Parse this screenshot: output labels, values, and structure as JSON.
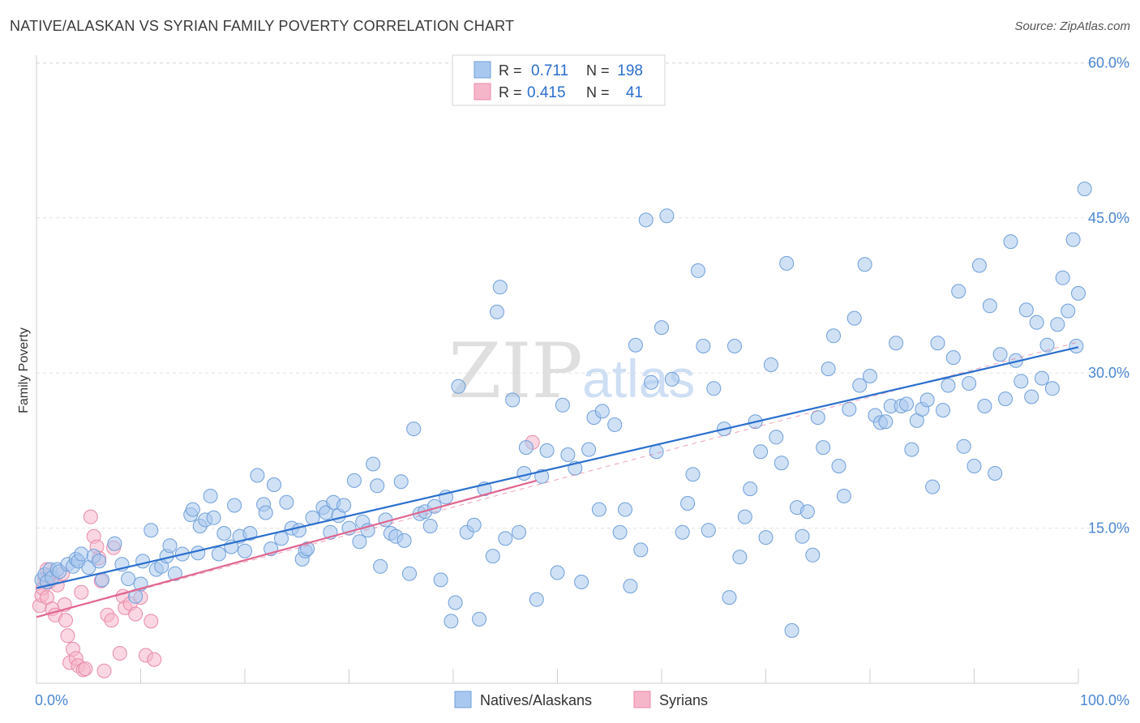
{
  "title": "NATIVE/ALASKAN VS SYRIAN FAMILY POVERTY CORRELATION CHART",
  "source": "Source: ZipAtlas.com",
  "watermark": {
    "zip": "ZIP",
    "atlas": "atlas"
  },
  "legend_top": [
    {
      "label_r": "R =",
      "r": "0.711",
      "label_n": "N =",
      "n": "198",
      "color": "#a9c8ef"
    },
    {
      "label_r": "R =",
      "r": "0.415",
      "label_n": "N =",
      "n": "41",
      "color": "#f6b6ca"
    }
  ],
  "legend_bottom": [
    {
      "label": "Natives/Alaskans",
      "color": "#a9c8ef"
    },
    {
      "label": "Syrians",
      "color": "#f6b6ca"
    }
  ],
  "colors": {
    "blue_fill": "#a9c8ef",
    "blue_stroke": "#6f9fd9",
    "blue_line": "#2a6fce",
    "pink_fill": "#f6b6ca",
    "pink_stroke": "#e98aa9",
    "pink_line": "#e0668f",
    "axis_text": "#4a86d0"
  },
  "chart_data": {
    "type": "scatter",
    "title": "NATIVE/ALASKAN VS SYRIAN FAMILY POVERTY CORRELATION CHART",
    "xlabel": "",
    "ylabel": "Family Poverty",
    "xlim": [
      0,
      100
    ],
    "ylim": [
      0,
      63
    ],
    "x_tick_labels": [
      {
        "value": 0,
        "label": "0.0%"
      },
      {
        "value": 100,
        "label": "100.0%"
      }
    ],
    "y_tick_labels": [
      {
        "value": 15,
        "label": "15.0%"
      },
      {
        "value": 30,
        "label": "30.0%"
      },
      {
        "value": 45,
        "label": "45.0%"
      },
      {
        "value": 60,
        "label": "60.0%"
      }
    ],
    "series": [
      {
        "name": "Natives/Alaskans",
        "r": 0.711,
        "n": 198,
        "trend": {
          "x0": 0,
          "y0": 9.2,
          "x1": 100,
          "y1": 32.5
        },
        "trend_ext": {
          "x0": 0,
          "y0": 6.4,
          "x1": 100,
          "y1": 33
        },
        "points": [
          [
            0.5,
            10
          ],
          [
            0.8,
            10.5
          ],
          [
            1,
            9.8
          ],
          [
            1.3,
            11
          ],
          [
            1.5,
            10.2
          ],
          [
            2,
            11
          ],
          [
            2.2,
            10.8
          ],
          [
            3,
            11.5
          ],
          [
            3.5,
            11.3
          ],
          [
            3.8,
            12
          ],
          [
            4,
            11.8
          ],
          [
            4.3,
            12.5
          ],
          [
            5,
            11.2
          ],
          [
            5.5,
            12.3
          ],
          [
            6,
            11.8
          ],
          [
            6.3,
            10
          ],
          [
            7.5,
            13.5
          ],
          [
            8.2,
            11.5
          ],
          [
            8.8,
            10.1
          ],
          [
            9.5,
            8.4
          ],
          [
            10,
            9.6
          ],
          [
            10.2,
            11.8
          ],
          [
            11,
            14.8
          ],
          [
            11.5,
            11
          ],
          [
            12,
            11.3
          ],
          [
            12.5,
            12.3
          ],
          [
            12.8,
            13.3
          ],
          [
            13.3,
            10.6
          ],
          [
            14,
            12.5
          ],
          [
            14.8,
            16.3
          ],
          [
            15,
            16.8
          ],
          [
            15.5,
            12.6
          ],
          [
            15.7,
            15.2
          ],
          [
            16.2,
            15.8
          ],
          [
            16.7,
            18.1
          ],
          [
            17,
            16
          ],
          [
            17.5,
            12.5
          ],
          [
            18,
            14.5
          ],
          [
            18.7,
            13.2
          ],
          [
            19,
            17.2
          ],
          [
            19.5,
            14.2
          ],
          [
            20,
            12.8
          ],
          [
            20.5,
            14.5
          ],
          [
            21.2,
            20.1
          ],
          [
            21.8,
            17.3
          ],
          [
            22,
            16.5
          ],
          [
            22.5,
            13
          ],
          [
            22.8,
            19.2
          ],
          [
            23.5,
            14
          ],
          [
            24,
            17.5
          ],
          [
            24.5,
            15
          ],
          [
            25.2,
            14.8
          ],
          [
            25.5,
            12
          ],
          [
            25.8,
            12.8
          ],
          [
            26,
            13
          ],
          [
            26.5,
            16
          ],
          [
            27.5,
            17
          ],
          [
            27.8,
            16.5
          ],
          [
            28.2,
            14.6
          ],
          [
            28.5,
            17.5
          ],
          [
            29,
            16.2
          ],
          [
            29.5,
            17.2
          ],
          [
            30,
            15
          ],
          [
            30.5,
            19.6
          ],
          [
            31,
            13.7
          ],
          [
            31.3,
            15.6
          ],
          [
            31.8,
            14.8
          ],
          [
            32.3,
            21.2
          ],
          [
            32.7,
            19.1
          ],
          [
            33,
            11.3
          ],
          [
            33.5,
            15.8
          ],
          [
            34,
            14.5
          ],
          [
            34.5,
            14.2
          ],
          [
            35,
            19.5
          ],
          [
            35.3,
            13.8
          ],
          [
            35.8,
            10.6
          ],
          [
            36.2,
            24.6
          ],
          [
            36.8,
            16.4
          ],
          [
            37.3,
            16.6
          ],
          [
            37.8,
            15.2
          ],
          [
            38.2,
            17.1
          ],
          [
            38.8,
            10
          ],
          [
            39.3,
            18
          ],
          [
            39.8,
            6
          ],
          [
            40.2,
            7.8
          ],
          [
            40.5,
            28.7
          ],
          [
            41.3,
            14.6
          ],
          [
            42,
            15.3
          ],
          [
            42.5,
            6.2
          ],
          [
            43,
            18.8
          ],
          [
            43.8,
            12.3
          ],
          [
            44.2,
            35.9
          ],
          [
            44.5,
            38.3
          ],
          [
            45,
            14
          ],
          [
            45.7,
            27.4
          ],
          [
            46.3,
            14.6
          ],
          [
            46.8,
            20.3
          ],
          [
            47,
            22.8
          ],
          [
            48,
            8.1
          ],
          [
            48.5,
            20
          ],
          [
            49,
            22.5
          ],
          [
            50,
            10.7
          ],
          [
            50.5,
            26.9
          ],
          [
            51,
            22.1
          ],
          [
            51.7,
            20.8
          ],
          [
            52.3,
            9.8
          ],
          [
            53,
            22.6
          ],
          [
            53.5,
            25.7
          ],
          [
            54,
            16.8
          ],
          [
            54.3,
            26.3
          ],
          [
            55.5,
            25
          ],
          [
            56,
            14.6
          ],
          [
            56.5,
            16.8
          ],
          [
            57,
            9.4
          ],
          [
            57.5,
            32.7
          ],
          [
            58,
            12.9
          ],
          [
            58.5,
            44.8
          ],
          [
            59,
            29.1
          ],
          [
            59.5,
            22.4
          ],
          [
            60,
            34.4
          ],
          [
            60.5,
            45.2
          ],
          [
            61,
            29.4
          ],
          [
            62,
            14.6
          ],
          [
            62.5,
            17.4
          ],
          [
            63,
            20.2
          ],
          [
            63.5,
            39.9
          ],
          [
            64,
            32.6
          ],
          [
            64.5,
            14.8
          ],
          [
            65,
            28.5
          ],
          [
            66,
            24.6
          ],
          [
            66.5,
            8.3
          ],
          [
            67,
            32.6
          ],
          [
            67.5,
            12.2
          ],
          [
            68,
            16.1
          ],
          [
            68.5,
            18.8
          ],
          [
            69,
            25.3
          ],
          [
            69.5,
            22.4
          ],
          [
            70,
            14.1
          ],
          [
            70.5,
            30.8
          ],
          [
            71,
            23.8
          ],
          [
            71.5,
            21.3
          ],
          [
            72,
            40.6
          ],
          [
            72.5,
            5.1
          ],
          [
            73,
            17
          ],
          [
            73.5,
            14.2
          ],
          [
            74,
            16.6
          ],
          [
            74.5,
            12.4
          ],
          [
            75,
            25.7
          ],
          [
            75.5,
            22.8
          ],
          [
            76,
            30.4
          ],
          [
            76.5,
            33.6
          ],
          [
            77,
            21
          ],
          [
            77.5,
            18.1
          ],
          [
            78,
            26.5
          ],
          [
            78.5,
            35.3
          ],
          [
            79,
            28.8
          ],
          [
            79.5,
            40.5
          ],
          [
            80,
            29.7
          ],
          [
            80.5,
            25.9
          ],
          [
            81,
            25.2
          ],
          [
            81.5,
            25.3
          ],
          [
            82,
            26.8
          ],
          [
            82.5,
            32.9
          ],
          [
            83,
            26.8
          ],
          [
            83.5,
            27
          ],
          [
            84,
            22.6
          ],
          [
            84.5,
            25.4
          ],
          [
            85,
            26.5
          ],
          [
            85.5,
            27.4
          ],
          [
            86,
            19
          ],
          [
            86.5,
            32.9
          ],
          [
            87,
            26.4
          ],
          [
            87.5,
            28.8
          ],
          [
            88,
            31.5
          ],
          [
            88.5,
            37.9
          ],
          [
            89,
            22.9
          ],
          [
            89.5,
            29
          ],
          [
            90,
            21
          ],
          [
            90.5,
            40.4
          ],
          [
            91,
            26.8
          ],
          [
            91.5,
            36.5
          ],
          [
            92,
            20.3
          ],
          [
            92.5,
            31.8
          ],
          [
            93,
            27.5
          ],
          [
            93.5,
            42.7
          ],
          [
            94,
            31.2
          ],
          [
            94.5,
            29.2
          ],
          [
            95,
            36.1
          ],
          [
            95.5,
            27.7
          ],
          [
            96,
            34.9
          ],
          [
            96.5,
            29.5
          ],
          [
            97,
            32.7
          ],
          [
            97.5,
            28.5
          ],
          [
            98,
            34.7
          ],
          [
            98.5,
            39.2
          ],
          [
            99,
            36
          ],
          [
            99.5,
            42.9
          ],
          [
            99.8,
            32.6
          ],
          [
            100,
            37.7
          ],
          [
            100.6,
            47.8
          ]
        ]
      },
      {
        "name": "Syrians",
        "r": 0.415,
        "n": 41,
        "trend": {
          "x0": 0,
          "y0": 6.4,
          "x1": 48,
          "y1": 19.6
        },
        "points": [
          [
            0.3,
            7.5
          ],
          [
            0.5,
            8.5
          ],
          [
            0.6,
            9.2
          ],
          [
            0.8,
            10
          ],
          [
            1,
            11
          ],
          [
            1,
            8.3
          ],
          [
            1.2,
            9.8
          ],
          [
            1.3,
            10.4
          ],
          [
            1.5,
            7.2
          ],
          [
            1.8,
            6.6
          ],
          [
            2,
            9.5
          ],
          [
            2.5,
            10.6
          ],
          [
            2.7,
            7.6
          ],
          [
            2.8,
            6.1
          ],
          [
            3,
            4.6
          ],
          [
            3.2,
            2
          ],
          [
            3.5,
            3.3
          ],
          [
            3.8,
            2.4
          ],
          [
            4,
            1.7
          ],
          [
            4.3,
            8.8
          ],
          [
            4.5,
            1.3
          ],
          [
            4.7,
            1.4
          ],
          [
            5.2,
            16.1
          ],
          [
            5.5,
            14.2
          ],
          [
            5.8,
            13.2
          ],
          [
            6,
            12.1
          ],
          [
            6.2,
            9.9
          ],
          [
            6.5,
            1.2
          ],
          [
            6.8,
            6.6
          ],
          [
            7.2,
            6.1
          ],
          [
            7.4,
            13.1
          ],
          [
            8,
            2.9
          ],
          [
            8.3,
            8.4
          ],
          [
            8.5,
            7.3
          ],
          [
            9,
            7.7
          ],
          [
            9.5,
            6.7
          ],
          [
            10,
            8.3
          ],
          [
            10.5,
            2.7
          ],
          [
            11,
            6
          ],
          [
            11.3,
            2.3
          ],
          [
            47.6,
            23.3
          ]
        ]
      }
    ]
  }
}
